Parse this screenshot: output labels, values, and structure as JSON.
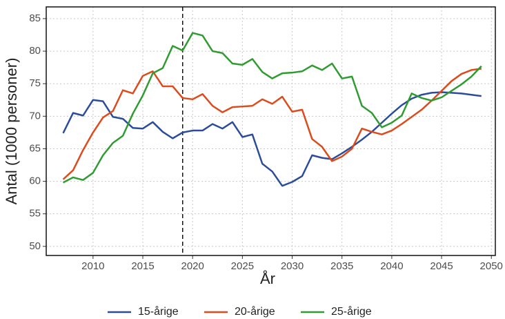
{
  "chart_data": {
    "type": "line",
    "xlabel": "År",
    "ylabel": "Antal (1000 personer)",
    "x": [
      2007,
      2008,
      2009,
      2010,
      2011,
      2012,
      2013,
      2014,
      2015,
      2016,
      2017,
      2018,
      2019,
      2020,
      2021,
      2022,
      2023,
      2024,
      2025,
      2026,
      2027,
      2028,
      2029,
      2030,
      2031,
      2032,
      2033,
      2034,
      2035,
      2036,
      2037,
      2038,
      2039,
      2040,
      2041,
      2042,
      2043,
      2044,
      2045,
      2046,
      2047,
      2048,
      2049
    ],
    "series": [
      {
        "name": "15-årige",
        "color": "#2b4c9a",
        "values": [
          67.4,
          70.5,
          70.1,
          72.5,
          72.3,
          69.9,
          69.6,
          68.2,
          68.1,
          69.1,
          67.6,
          66.6,
          67.5,
          67.8,
          67.8,
          68.8,
          68.1,
          69.1,
          66.8,
          67.2,
          62.7,
          61.5,
          59.3,
          59.9,
          60.8,
          64.0,
          63.6,
          63.4,
          64.3,
          65.3,
          66.4,
          67.6,
          69.0,
          70.4,
          71.7,
          72.7,
          73.3,
          73.6,
          73.7,
          73.6,
          73.5,
          73.3,
          73.1
        ]
      },
      {
        "name": "20-årige",
        "color": "#dd4a1c",
        "values": [
          60.3,
          61.7,
          64.8,
          67.5,
          69.8,
          70.8,
          74.0,
          73.5,
          76.2,
          76.9,
          74.6,
          74.6,
          72.8,
          72.6,
          73.4,
          71.6,
          70.6,
          71.4,
          71.5,
          71.6,
          72.6,
          71.9,
          73.0,
          70.7,
          71.0,
          66.5,
          65.3,
          63.1,
          63.8,
          65.0,
          68.1,
          67.6,
          67.2,
          67.8,
          68.8,
          69.9,
          71.0,
          72.4,
          73.9,
          75.4,
          76.5,
          77.1,
          77.3
        ]
      },
      {
        "name": "25-årige",
        "color": "#2f9b30",
        "values": [
          59.8,
          60.6,
          60.2,
          61.3,
          64.0,
          65.9,
          67.0,
          70.4,
          73.2,
          76.6,
          77.4,
          80.8,
          80.1,
          82.8,
          82.4,
          80.0,
          79.7,
          78.1,
          77.9,
          78.8,
          76.8,
          75.8,
          76.6,
          76.7,
          76.9,
          77.8,
          77.1,
          78.1,
          75.8,
          76.1,
          71.6,
          70.5,
          68.3,
          69.0,
          70.1,
          73.5,
          72.8,
          72.4,
          72.9,
          73.9,
          74.9,
          76.1,
          77.7
        ]
      }
    ],
    "xlim": [
      2005.3,
      2050.4
    ],
    "xticks": [
      2010,
      2015,
      2020,
      2025,
      2030,
      2035,
      2040,
      2045,
      2050
    ],
    "ylim": [
      48.6,
      86.8
    ],
    "yticks": [
      50,
      55,
      60,
      65,
      70,
      75,
      80,
      85
    ],
    "vline": 2019,
    "grid": true,
    "legend": "bottom"
  }
}
